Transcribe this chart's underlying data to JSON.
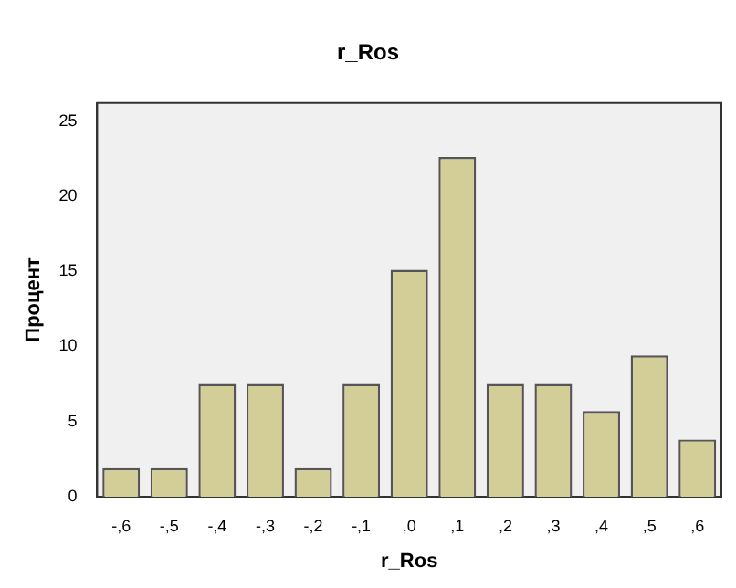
{
  "chart_data": {
    "type": "bar",
    "title": "r_Ros",
    "xlabel": "r_Ros",
    "ylabel": "Процент",
    "categories": [
      "-,6",
      "-,5",
      "-,4",
      "-,3",
      "-,2",
      "-,1",
      ",0",
      ",1",
      ",2",
      ",3",
      ",4",
      ",5",
      ",6"
    ],
    "values": [
      1.9,
      1.9,
      7.5,
      7.5,
      1.9,
      7.5,
      15.1,
      22.6,
      7.5,
      7.5,
      5.7,
      9.4,
      3.8
    ],
    "color": "#d3ce97",
    "ylim": [
      0,
      26.2
    ],
    "yticks": [
      0,
      5,
      10,
      15,
      20,
      25
    ],
    "grid": false,
    "legend": false
  }
}
